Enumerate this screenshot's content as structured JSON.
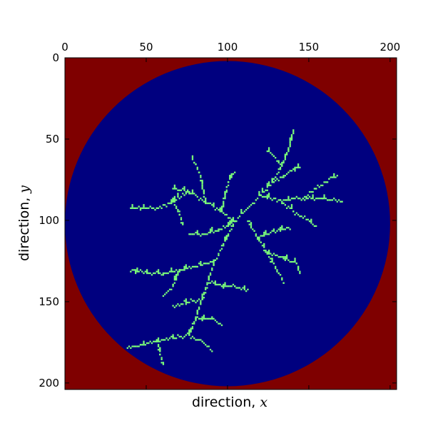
{
  "chart_data": {
    "type": "heatmap",
    "title": "",
    "xlabel_text": "direction, ",
    "xlabel_var": "x",
    "ylabel_text": "direction, ",
    "ylabel_var": "y",
    "x_axis_position": "top",
    "y_axis_direction": "inverted",
    "xlim": [
      0,
      204
    ],
    "ylim": [
      204,
      0
    ],
    "xticks": [
      0,
      50,
      100,
      150,
      200
    ],
    "yticks": [
      0,
      50,
      100,
      150,
      200
    ],
    "xtick_labels": [
      "0",
      "50",
      "100",
      "150",
      "200"
    ],
    "ytick_labels": [
      "0",
      "50",
      "100",
      "150",
      "200"
    ],
    "grid": false,
    "legend": "none",
    "grid_size": [
      204,
      204
    ],
    "domain_circle": {
      "center": [
        100,
        102
      ],
      "radius": 100
    },
    "colors": {
      "outside": "#7f0000",
      "inside": "#00007f",
      "cluster": "#7cff79"
    },
    "cluster_seed": [
      104,
      100
    ],
    "cluster_branches": [
      {
        "name": "upper-right-arm",
        "points": [
          [
            104,
            100
          ],
          [
            112,
            92
          ],
          [
            120,
            84
          ],
          [
            127,
            76
          ],
          [
            133,
            66
          ],
          [
            137,
            56
          ],
          [
            140,
            44
          ]
        ]
      },
      {
        "name": "upper-right-sub",
        "points": [
          [
            127,
            76
          ],
          [
            134,
            72
          ],
          [
            144,
            66
          ]
        ]
      },
      {
        "name": "upper-right-twig",
        "points": [
          [
            133,
            66
          ],
          [
            128,
            60
          ],
          [
            124,
            56
          ]
        ]
      },
      {
        "name": "right-arm",
        "points": [
          [
            120,
            84
          ],
          [
            132,
            87
          ],
          [
            146,
            86
          ],
          [
            158,
            86
          ],
          [
            170,
            88
          ]
        ]
      },
      {
        "name": "right-sub",
        "points": [
          [
            146,
            86
          ],
          [
            154,
            80
          ],
          [
            162,
            74
          ],
          [
            167,
            72
          ]
        ]
      },
      {
        "name": "right-twig",
        "points": [
          [
            132,
            87
          ],
          [
            140,
            94
          ],
          [
            150,
            100
          ],
          [
            154,
            104
          ]
        ]
      },
      {
        "name": "lower-right-arm",
        "points": [
          [
            112,
            100
          ],
          [
            118,
            110
          ],
          [
            124,
            120
          ],
          [
            130,
            130
          ],
          [
            134,
            138
          ]
        ]
      },
      {
        "name": "lower-right-sub",
        "points": [
          [
            124,
            120
          ],
          [
            134,
            122
          ],
          [
            142,
            126
          ],
          [
            144,
            132
          ]
        ]
      },
      {
        "name": "lower-right-twig",
        "points": [
          [
            118,
            110
          ],
          [
            128,
            106
          ],
          [
            138,
            104
          ]
        ]
      },
      {
        "name": "upper-left-arm",
        "points": [
          [
            104,
            100
          ],
          [
            96,
            94
          ],
          [
            86,
            88
          ],
          [
            76,
            82
          ],
          [
            66,
            80
          ]
        ]
      },
      {
        "name": "upper-left-sub",
        "points": [
          [
            86,
            88
          ],
          [
            84,
            78
          ],
          [
            82,
            70
          ],
          [
            78,
            62
          ]
        ]
      },
      {
        "name": "upper-left-twig",
        "points": [
          [
            96,
            94
          ],
          [
            98,
            84
          ],
          [
            100,
            76
          ],
          [
            104,
            70
          ]
        ]
      },
      {
        "name": "left-arm",
        "points": [
          [
            76,
            82
          ],
          [
            66,
            88
          ],
          [
            56,
            92
          ],
          [
            46,
            92
          ],
          [
            40,
            92
          ]
        ]
      },
      {
        "name": "left-twig",
        "points": [
          [
            66,
            88
          ],
          [
            70,
            96
          ],
          [
            72,
            102
          ]
        ]
      },
      {
        "name": "mid-left-arm",
        "points": [
          [
            104,
            100
          ],
          [
            94,
            106
          ],
          [
            84,
            108
          ],
          [
            76,
            108
          ]
        ]
      },
      {
        "name": "center-down-arm",
        "points": [
          [
            104,
            100
          ],
          [
            98,
            112
          ],
          [
            92,
            124
          ],
          [
            88,
            136
          ],
          [
            84,
            148
          ],
          [
            80,
            160
          ],
          [
            76,
            170
          ]
        ]
      },
      {
        "name": "lower-left-arm",
        "points": [
          [
            92,
            124
          ],
          [
            80,
            128
          ],
          [
            70,
            130
          ],
          [
            60,
            132
          ],
          [
            50,
            132
          ],
          [
            40,
            130
          ]
        ]
      },
      {
        "name": "lower-left-sub",
        "points": [
          [
            70,
            130
          ],
          [
            66,
            140
          ],
          [
            60,
            146
          ]
        ]
      },
      {
        "name": "mid-sub",
        "points": [
          [
            88,
            136
          ],
          [
            96,
            140
          ],
          [
            104,
            140
          ],
          [
            112,
            142
          ]
        ]
      },
      {
        "name": "mid-twig",
        "points": [
          [
            84,
            148
          ],
          [
            74,
            150
          ],
          [
            66,
            152
          ]
        ]
      },
      {
        "name": "bottom-left-arm",
        "points": [
          [
            76,
            170
          ],
          [
            66,
            172
          ],
          [
            56,
            174
          ],
          [
            46,
            176
          ],
          [
            38,
            178
          ]
        ]
      },
      {
        "name": "bottom-sub",
        "points": [
          [
            56,
            174
          ],
          [
            58,
            182
          ],
          [
            60,
            188
          ]
        ]
      },
      {
        "name": "bottom-twig",
        "points": [
          [
            76,
            170
          ],
          [
            84,
            174
          ],
          [
            90,
            180
          ]
        ]
      },
      {
        "name": "bottom-mid",
        "points": [
          [
            80,
            160
          ],
          [
            90,
            160
          ],
          [
            96,
            164
          ]
        ]
      }
    ]
  }
}
